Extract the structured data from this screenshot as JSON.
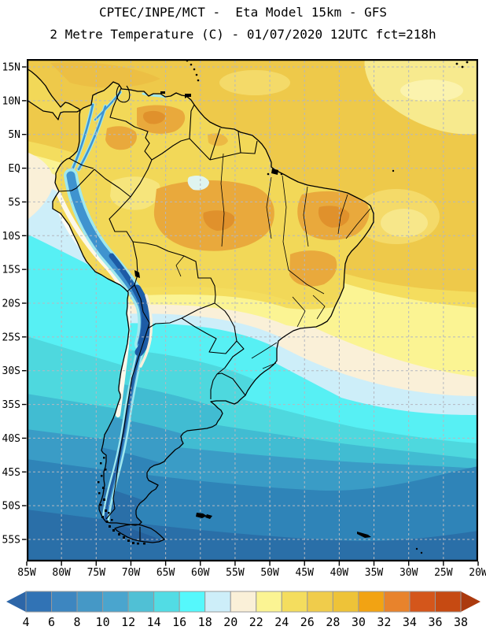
{
  "header": {
    "title_line1": "CPTEC/INPE/MCT -  Eta Model 15km - GFS",
    "title_line2": "2 Metre Temperature (C) - 01/07/2020 12UTC fct=218h"
  },
  "map": {
    "lat_labels": [
      "15N",
      "10N",
      "5N",
      "EQ",
      "5S",
      "10S",
      "15S",
      "20S",
      "25S",
      "30S",
      "35S",
      "40S",
      "45S",
      "50S",
      "55S"
    ],
    "lon_labels": [
      "85W",
      "80W",
      "75W",
      "70W",
      "65W",
      "60W",
      "55W",
      "50W",
      "45W",
      "40W",
      "35W",
      "30W",
      "25W",
      "20W"
    ],
    "grid_color": "#b4b8c0",
    "frame_color": "#000000"
  },
  "colorbar": {
    "tick_labels": [
      "4",
      "6",
      "8",
      "10",
      "12",
      "14",
      "16",
      "18",
      "20",
      "22",
      "24",
      "26",
      "28",
      "30",
      "32",
      "34",
      "36",
      "38"
    ],
    "segment_colors": [
      "#3173b5",
      "#3d86c0",
      "#4598c6",
      "#4aa5ce",
      "#50c0d5",
      "#52dce4",
      "#55f8fc",
      "#cdeef9",
      "#faf0d8",
      "#fbf493",
      "#f4dd5e",
      "#f0cc4b",
      "#eec338",
      "#f2a313",
      "#e8832c",
      "#d4561b",
      "#c64a12"
    ],
    "left_arrow_color": "#2d66a8",
    "right_arrow_color": "#ab3a0e",
    "outline_color": "#999999"
  },
  "map_palette": {
    "ocean_warm_gold": "#eec94a",
    "land_warm_yellow": "#f2d858",
    "land_hot_orange": "#e9a93c",
    "transition_cream": "#faf0d8",
    "pale_cyan": "#cdeef9",
    "cyan": "#57f0f4",
    "teal": "#41bcd2",
    "south_blue": "#2f84b8",
    "deep_south_blue": "#2a6fa8",
    "andes_cold_core": "#1d5ca6",
    "border_black": "#000000"
  },
  "chart_data": {
    "type": "filled-contour-map",
    "title": "CPTEC/INPE/MCT -  Eta Model 15km - GFS",
    "subtitle": "2 Metre Temperature (C) - 01/07/2020 12UTC fct=218h",
    "institution": "CPTEC/INPE/MCT",
    "model": "Eta Model 15km",
    "forcing": "GFS",
    "variable": "2 Metre Temperature",
    "units": "C",
    "run_date": "01/07/2020",
    "run_time": "12UTC",
    "forecast_hour": 218,
    "lat_range": [
      "15N",
      "55S"
    ],
    "lon_range": [
      "85W",
      "20W"
    ],
    "grid_interval_degrees": 5,
    "contour_levels_celsius": [
      4,
      6,
      8,
      10,
      12,
      14,
      16,
      18,
      20,
      22,
      24,
      26,
      28,
      30,
      32,
      34,
      36,
      38
    ],
    "features": [
      "Warm 24-30C air over tropical South America and adjacent Atlantic/Caribbean",
      "Hot 28-30C patches over interior Amazonia and Northeast Brazil",
      "Cold 4-10C Andes ridge from Colombia to Patagonia, widest over Peru-Bolivia altiplano",
      "Sharp 18-22C cream transition band crossing the continent near 20-27S",
      "Cool upwelling tongue along the Peru-Chile Pacific coast",
      "Cold 4-12C over Patagonia, Tierra del Fuego and the Southern Ocean"
    ]
  }
}
